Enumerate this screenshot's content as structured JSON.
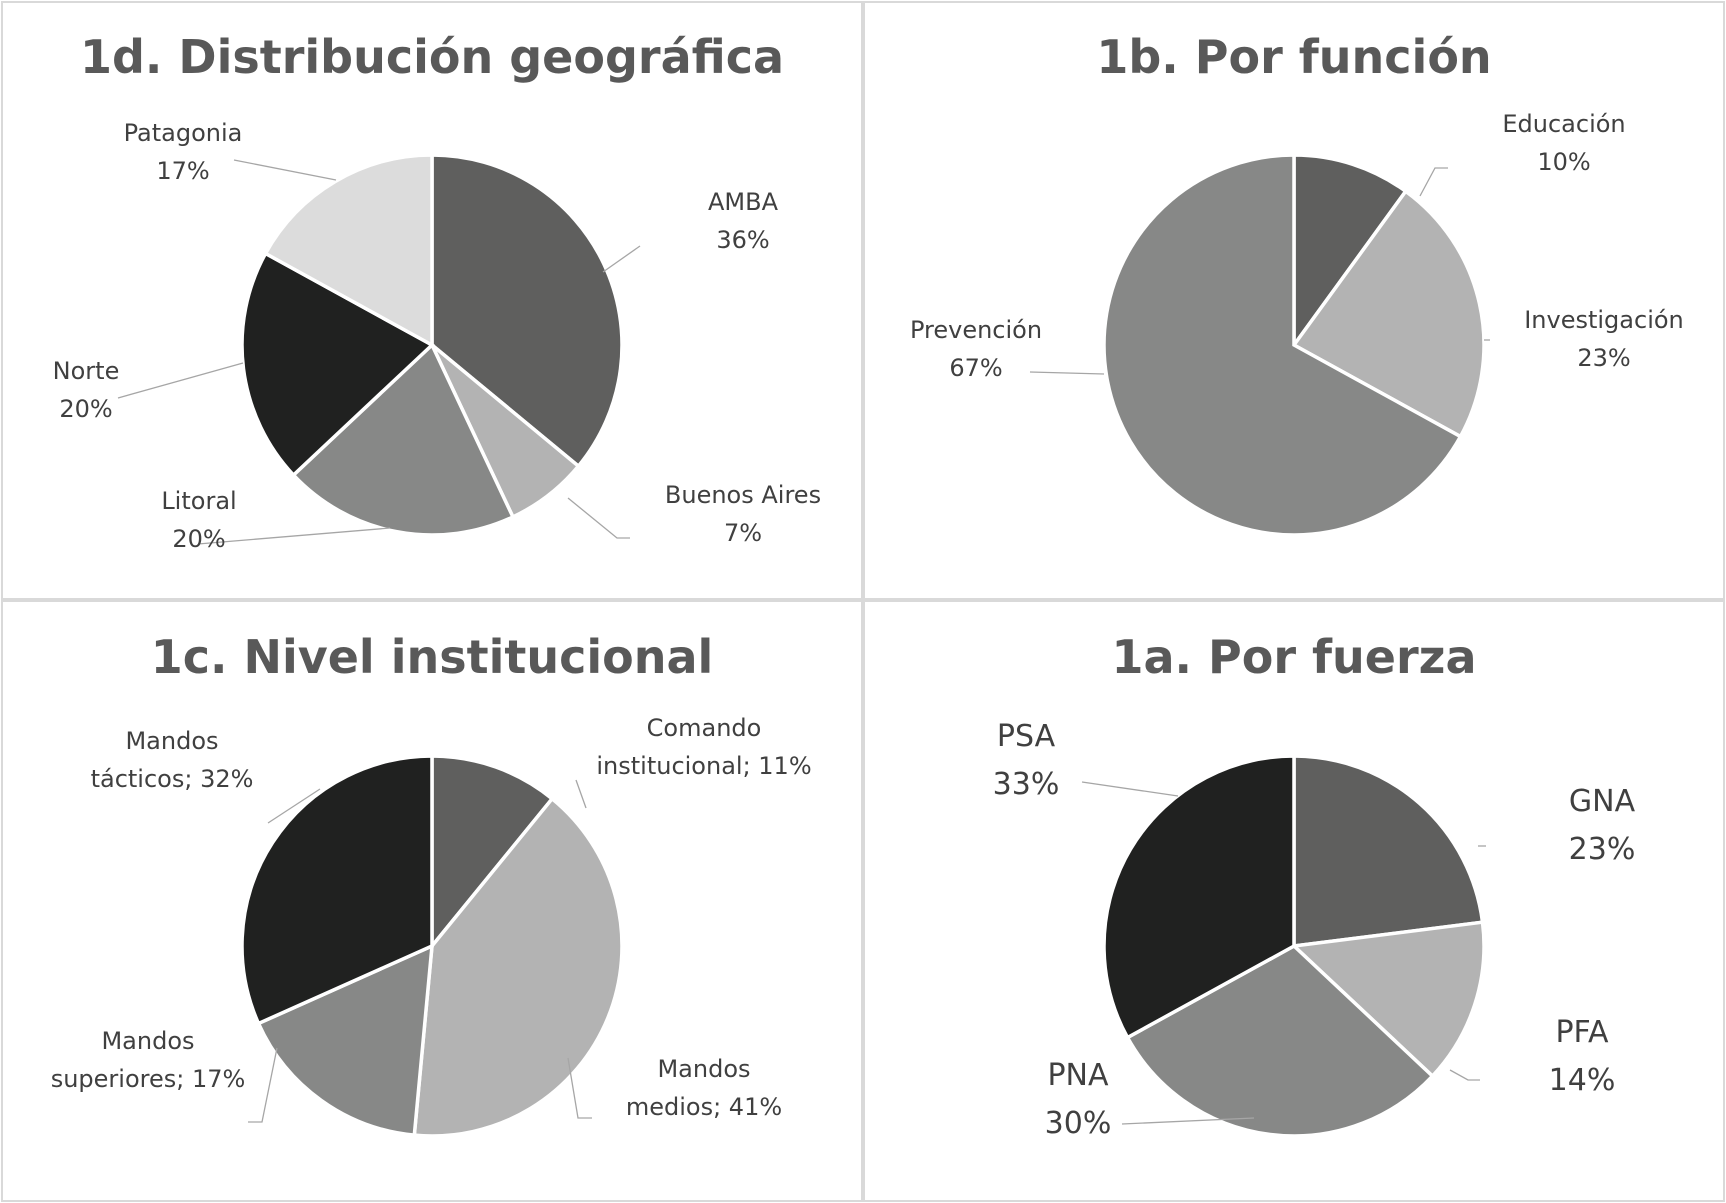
{
  "chart_data": [
    {
      "type": "pie",
      "title": "1d. Distribución geográfica",
      "label_format": "newline",
      "slices": [
        {
          "label": "AMBA",
          "value": 36,
          "value_text": "36%",
          "color": "#5f5f5e"
        },
        {
          "label": "Buenos Aires",
          "value": 7,
          "value_text": "7%",
          "color": "#b3b3b3"
        },
        {
          "label": "Litoral",
          "value": 20,
          "value_text": "20%",
          "color": "#878887"
        },
        {
          "label": "Norte",
          "value": 20,
          "value_text": "20%",
          "color": "#202120"
        },
        {
          "label": "Patagonia",
          "value": 17,
          "value_text": "17%",
          "color": "#dcdcdc"
        }
      ]
    },
    {
      "type": "pie",
      "title": "1b. Por función",
      "label_format": "newline",
      "slices": [
        {
          "label": "Educación",
          "value": 10,
          "value_text": "10%",
          "color": "#5f5f5e"
        },
        {
          "label": "Investigación",
          "value": 23,
          "value_text": "23%",
          "color": "#b3b3b3"
        },
        {
          "label": "Prevención",
          "value": 67,
          "value_text": "67%",
          "color": "#878887"
        }
      ]
    },
    {
      "type": "pie",
      "title": "1c. Nivel institucional",
      "label_format": "semicolon",
      "slices": [
        {
          "label": "Comando institucional",
          "value": 11,
          "value_text": "11%",
          "color": "#5f5f5e"
        },
        {
          "label": "Mandos medios",
          "value": 41,
          "value_text": "41%",
          "color": "#b3b3b3"
        },
        {
          "label": "Mandos superiores",
          "value": 17,
          "value_text": "17%",
          "color": "#878887"
        },
        {
          "label": "Mandos tácticos",
          "value": 32,
          "value_text": "32%",
          "color": "#202120"
        }
      ]
    },
    {
      "type": "pie",
      "title": "1a. Por fuerza",
      "label_format": "newline",
      "slices": [
        {
          "label": "GNA",
          "value": 23,
          "value_text": "23%",
          "color": "#5f5f5e"
        },
        {
          "label": "PFA",
          "value": 14,
          "value_text": "14%",
          "color": "#b3b3b3"
        },
        {
          "label": "PNA",
          "value": 30,
          "value_text": "30%",
          "color": "#878887"
        },
        {
          "label": "PSA",
          "value": 33,
          "value_text": "33%",
          "color": "#202120"
        }
      ]
    }
  ]
}
